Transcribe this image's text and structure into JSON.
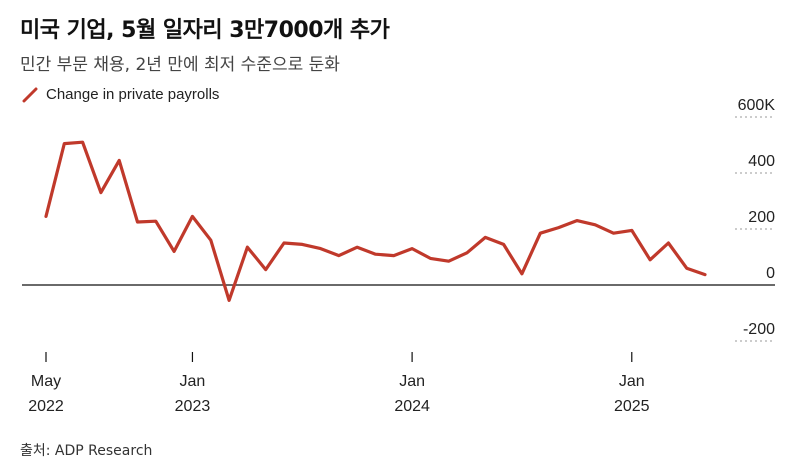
{
  "title": "미국 기업, 5월 일자리 3만7000개 추가",
  "subtitle": "민간 부문 채용, 2년 만에 최저 수준으로 둔화",
  "source": "출처: ADP Research",
  "colors": {
    "line": "#c0392b",
    "axis": "#111111",
    "grid": "#999999"
  },
  "chart_data": {
    "type": "line",
    "title": "미국 기업, 5월 일자리 3만7000개 추가",
    "subtitle": "민간 부문 채용, 2년 만에 최저 수준으로 둔화",
    "xlabel": "",
    "ylabel": "",
    "ylim": [
      -200,
      600
    ],
    "y_ticks": [
      {
        "value": 600,
        "label": "600K"
      },
      {
        "value": 400,
        "label": "400"
      },
      {
        "value": 200,
        "label": "200"
      },
      {
        "value": 0,
        "label": "0"
      },
      {
        "value": -200,
        "label": "-200"
      }
    ],
    "x_ticks": [
      {
        "index": 0,
        "line1": "May",
        "line2": "2022"
      },
      {
        "index": 8,
        "line1": "Jan",
        "line2": "2023"
      },
      {
        "index": 20,
        "line1": "Jan",
        "line2": "2024"
      },
      {
        "index": 32,
        "line1": "Jan",
        "line2": "2025"
      }
    ],
    "grid": "horizontal at ticks",
    "legend_position": "top-left",
    "series": [
      {
        "name": "Change in private payrolls",
        "color": "#c0392b",
        "x": [
          "2022-05",
          "2022-06",
          "2022-07",
          "2022-08",
          "2022-09",
          "2022-10",
          "2022-11",
          "2022-12",
          "2023-01",
          "2023-02",
          "2023-03",
          "2023-04",
          "2023-05",
          "2023-06",
          "2023-07",
          "2023-08",
          "2023-09",
          "2023-10",
          "2023-11",
          "2023-12",
          "2024-01",
          "2024-02",
          "2024-03",
          "2024-04",
          "2024-05",
          "2024-06",
          "2024-07",
          "2024-08",
          "2024-09",
          "2024-10",
          "2024-11",
          "2024-12",
          "2025-01",
          "2025-02",
          "2025-03",
          "2025-04",
          "2025-05"
        ],
        "values": [
          245,
          505,
          510,
          330,
          445,
          225,
          228,
          120,
          245,
          160,
          -55,
          135,
          55,
          150,
          145,
          130,
          105,
          135,
          110,
          105,
          130,
          95,
          85,
          115,
          170,
          145,
          40,
          185,
          205,
          230,
          215,
          185,
          195,
          90,
          150,
          60,
          37
        ]
      }
    ]
  }
}
